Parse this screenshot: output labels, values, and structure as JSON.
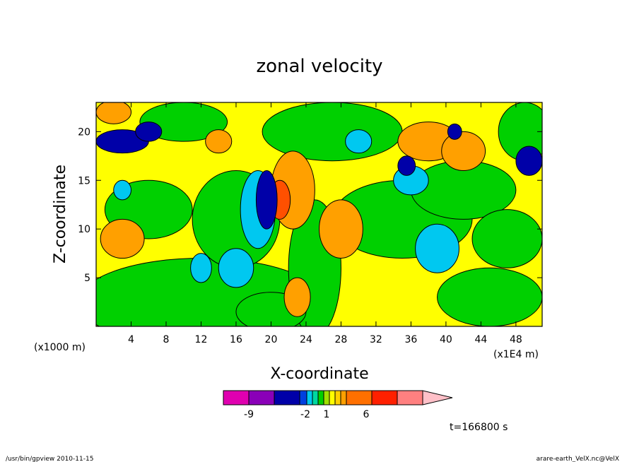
{
  "chart_data": {
    "type": "heatmap",
    "title": "zonal velocity",
    "xlabel": "X-coordinate",
    "ylabel": "Z-coordinate",
    "x_unit_left": "(x1000 m)",
    "x_unit_right": "(x1E4 m)",
    "xlim": [
      0,
      51
    ],
    "ylim": [
      0,
      23
    ],
    "xticks": [
      4,
      8,
      12,
      16,
      20,
      24,
      28,
      32,
      36,
      40,
      44,
      48
    ],
    "xtick_labels": [
      "4",
      "8",
      "12",
      "16",
      "20",
      "24",
      "28",
      "32",
      "36",
      "40",
      "44",
      "48"
    ],
    "yticks": [
      5,
      10,
      15,
      20
    ],
    "ytick_labels": [
      "5",
      "10",
      "15",
      "20"
    ],
    "time_label": "t=166800 s",
    "colorbar": {
      "colors": [
        "#e000b0",
        "#8a00b8",
        "#0000a8",
        "#0040e0",
        "#00c8f0",
        "#00d8a0",
        "#00d000",
        "#a0e000",
        "#ffff00",
        "#ffd000",
        "#ffa000",
        "#ff7000",
        "#ff2000",
        "#ff8080",
        "#ffc0c8"
      ],
      "tick_labels": [
        "-9",
        "-2",
        "1",
        "6"
      ]
    },
    "field_colors": {
      "strong_negative": "#0000a8",
      "negative": "#00c8f0",
      "weak_negative": "#00d000",
      "weak_positive": "#ffff00",
      "positive": "#ffa000",
      "strong_positive": "#ff5000"
    },
    "grid": false
  },
  "footer": {
    "left": "/usr/bin/gpview  2010-11-15",
    "right": "arare-earth_VelX.nc@VelX"
  }
}
